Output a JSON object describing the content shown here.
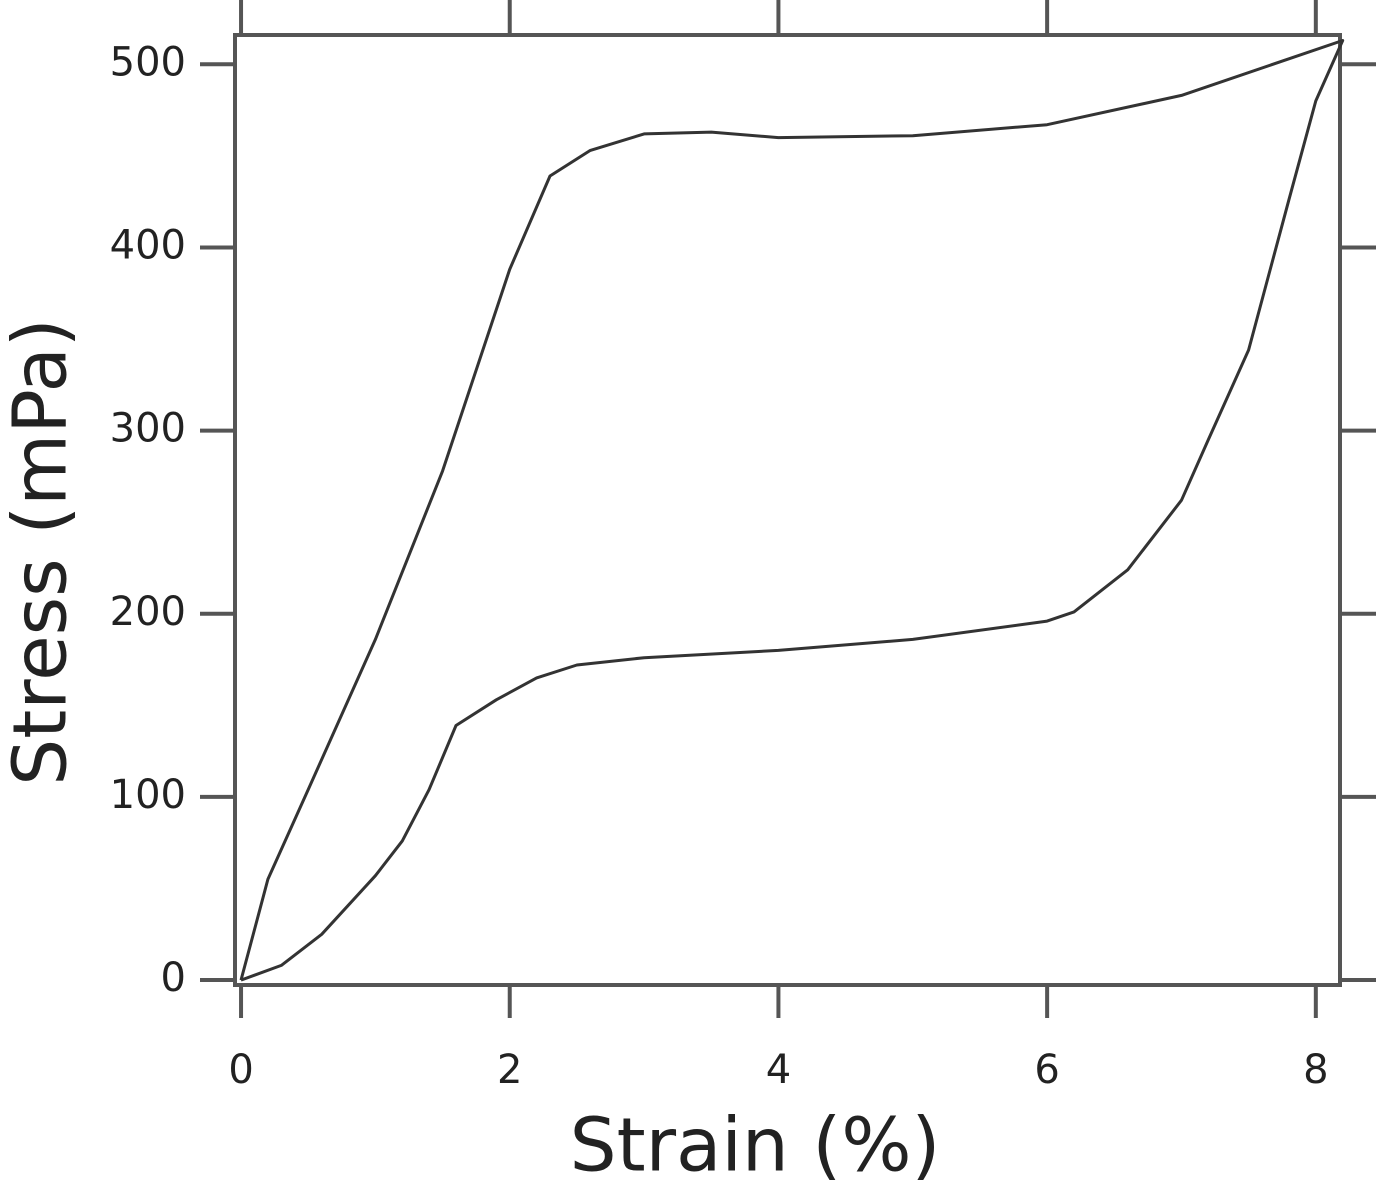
{
  "chart_data": {
    "type": "line",
    "xlabel": "Strain (%)",
    "ylabel": "Stress (mPa)",
    "x": [
      0,
      0.2,
      0.5,
      1.0,
      1.5,
      2.0,
      2.3,
      2.6,
      3.0,
      3.5,
      4.0,
      5.0,
      6.0,
      7.0,
      8.2,
      8.0,
      7.8,
      7.5,
      7.2,
      7.0,
      6.6,
      6.2,
      6.0,
      5.0,
      4.0,
      3.0,
      2.5,
      2.2,
      1.9,
      1.6,
      1.4,
      1.2,
      1.0,
      0.6,
      0.3,
      0
    ],
    "values": [
      0,
      55,
      104,
      186,
      278,
      388,
      439,
      453,
      462,
      463,
      460,
      461,
      467,
      483,
      513,
      480,
      426,
      344,
      295,
      262,
      224,
      201,
      196,
      186,
      180,
      176,
      172,
      165,
      153,
      139,
      104,
      76,
      57,
      25,
      8,
      0
    ],
    "color": "#333333",
    "xlim": [
      -0.045,
      8.18
    ],
    "ylim": [
      -2.7,
      516
    ],
    "xticks": [
      0,
      2,
      4,
      6,
      8
    ],
    "yticks": [
      0,
      100,
      200,
      300,
      400,
      500
    ],
    "grid": false
  }
}
